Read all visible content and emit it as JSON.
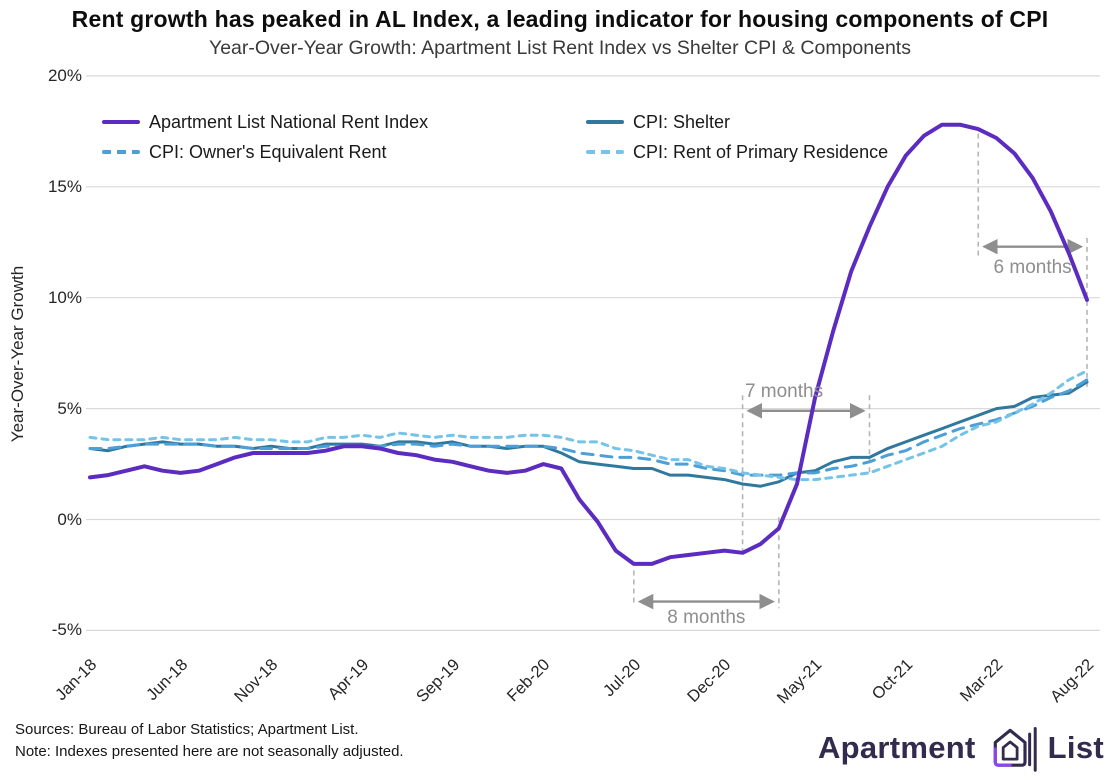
{
  "title": "Rent growth has peaked in AL Index, a leading indicator for housing components of CPI",
  "subtitle": "Year-Over-Year Growth: Apartment List Rent Index vs Shelter CPI & Components",
  "footer": {
    "sources_line": "Sources: Bureau of Labor Statistics; Apartment List.",
    "note_line": "Note: Indexes presented here are not seasonally adjusted.",
    "logo_word_1": "Apartment",
    "logo_word_2": "List",
    "logo_icon": "apartment-list-house-icon",
    "logo_color": "#322b4d",
    "logo_accent_color": "#8b46f0"
  },
  "chart_data": {
    "type": "line",
    "title": "Rent growth has peaked in AL Index, a leading indicator for housing components of CPI",
    "subtitle": "Year-Over-Year Growth: Apartment List Rent Index vs Shelter CPI & Components",
    "xlabel": "",
    "ylabel": "Year-Over-Year Growth",
    "ylim": [
      -5,
      20
    ],
    "grid": "horizontal-only",
    "legend_position": "top-left-inside",
    "x_start": "Jan-18",
    "x_end": "Aug-22",
    "x_frequency": "monthly",
    "ytick_values": [
      20,
      15,
      10,
      5,
      0,
      -5
    ],
    "ytick_labels": [
      "20%",
      "15%",
      "10%",
      "5%",
      "0%",
      "-5%"
    ],
    "xtick_month_indices": [
      0,
      5,
      10,
      15,
      20,
      25,
      30,
      35,
      40,
      45,
      50,
      55
    ],
    "xtick_labels": [
      "Jan-18",
      "Jun-18",
      "Nov-18",
      "Apr-19",
      "Sep-19",
      "Feb-20",
      "Jul-20",
      "Dec-20",
      "May-21",
      "Oct-21",
      "Mar-22",
      "Aug-22"
    ],
    "series": [
      {
        "name": "Apartment List National Rent Index",
        "color": "#5b2cbf",
        "style": "solid",
        "dash": "",
        "values": [
          1.9,
          2.0,
          2.2,
          2.4,
          2.2,
          2.1,
          2.2,
          2.5,
          2.8,
          3.0,
          3.0,
          3.0,
          3.0,
          3.1,
          3.3,
          3.3,
          3.2,
          3.0,
          2.9,
          2.7,
          2.6,
          2.4,
          2.2,
          2.1,
          2.2,
          2.5,
          2.3,
          0.9,
          -0.1,
          -1.4,
          -2.0,
          -2.0,
          -1.7,
          -1.6,
          -1.5,
          -1.4,
          -1.5,
          -1.1,
          -0.4,
          1.6,
          5.5,
          8.5,
          11.2,
          13.2,
          15.0,
          16.4,
          17.3,
          17.8,
          17.8,
          17.6,
          17.2,
          16.5,
          15.4,
          13.9,
          12.0,
          9.9
        ]
      },
      {
        "name": "CPI: Shelter",
        "color": "#30789e",
        "style": "solid",
        "dash": "",
        "values": [
          3.2,
          3.1,
          3.3,
          3.4,
          3.5,
          3.4,
          3.4,
          3.3,
          3.3,
          3.2,
          3.3,
          3.2,
          3.2,
          3.4,
          3.4,
          3.4,
          3.3,
          3.5,
          3.5,
          3.4,
          3.5,
          3.3,
          3.3,
          3.2,
          3.3,
          3.3,
          3.0,
          2.6,
          2.5,
          2.4,
          2.3,
          2.3,
          2.0,
          2.0,
          1.9,
          1.8,
          1.6,
          1.5,
          1.7,
          2.1,
          2.2,
          2.6,
          2.8,
          2.8,
          3.2,
          3.5,
          3.8,
          4.1,
          4.4,
          4.7,
          5.0,
          5.1,
          5.5,
          5.6,
          5.7,
          6.2
        ]
      },
      {
        "name": "CPI: Owner's Equivalent Rent",
        "color": "#4d9fd8",
        "style": "dashed",
        "dash": "11 8",
        "values": [
          3.2,
          3.2,
          3.3,
          3.4,
          3.4,
          3.4,
          3.4,
          3.3,
          3.3,
          3.2,
          3.2,
          3.2,
          3.2,
          3.3,
          3.3,
          3.3,
          3.3,
          3.4,
          3.4,
          3.3,
          3.4,
          3.3,
          3.3,
          3.3,
          3.3,
          3.3,
          3.2,
          3.0,
          2.9,
          2.8,
          2.8,
          2.7,
          2.5,
          2.5,
          2.3,
          2.2,
          2.0,
          2.0,
          2.0,
          2.1,
          2.1,
          2.3,
          2.4,
          2.6,
          2.9,
          3.1,
          3.5,
          3.8,
          4.1,
          4.3,
          4.5,
          4.8,
          5.1,
          5.5,
          5.8,
          6.3
        ]
      },
      {
        "name": "CPI: Rent of Primary Residence",
        "color": "#74c3e8",
        "style": "dashed",
        "dash": "6 6",
        "values": [
          3.7,
          3.6,
          3.6,
          3.6,
          3.7,
          3.6,
          3.6,
          3.6,
          3.7,
          3.6,
          3.6,
          3.5,
          3.5,
          3.7,
          3.7,
          3.8,
          3.7,
          3.9,
          3.8,
          3.7,
          3.8,
          3.7,
          3.7,
          3.7,
          3.8,
          3.8,
          3.7,
          3.5,
          3.5,
          3.2,
          3.1,
          2.9,
          2.7,
          2.7,
          2.4,
          2.3,
          2.1,
          2.0,
          1.9,
          1.8,
          1.8,
          1.9,
          2.0,
          2.1,
          2.4,
          2.7,
          3.0,
          3.3,
          3.8,
          4.2,
          4.4,
          4.8,
          5.2,
          5.7,
          6.3,
          6.7
        ]
      }
    ],
    "annotations": [
      {
        "label": "8 months",
        "from_month": "Jul-20",
        "to_month": "Mar-21",
        "m1": 30,
        "m2": 38,
        "arrow_pct": -3.7,
        "label_pct": -4.45,
        "label_dx": 0,
        "line1": [
          -2.3,
          -3.9
        ],
        "line2": [
          0.1,
          -4.0
        ]
      },
      {
        "label": "7 months",
        "from_month": "Jan-21",
        "to_month": "Aug-21",
        "m1": 36,
        "m2": 43,
        "arrow_pct": 4.9,
        "label_pct": 5.75,
        "label_dx": -22,
        "line1": [
          5.6,
          -1.6
        ],
        "line2": [
          5.6,
          2.1
        ]
      },
      {
        "label": "6 months",
        "from_month": "Feb-22",
        "to_month": "Aug-22",
        "m1": 49,
        "m2": 55,
        "arrow_pct": 12.3,
        "label_pct": 11.35,
        "label_dx": 0,
        "line1": [
          17.4,
          11.9
        ],
        "line2": [
          12.7,
          5.9
        ]
      }
    ],
    "annotation_color": "#8e8e8e",
    "gridline_color": "#d9d9d9"
  }
}
